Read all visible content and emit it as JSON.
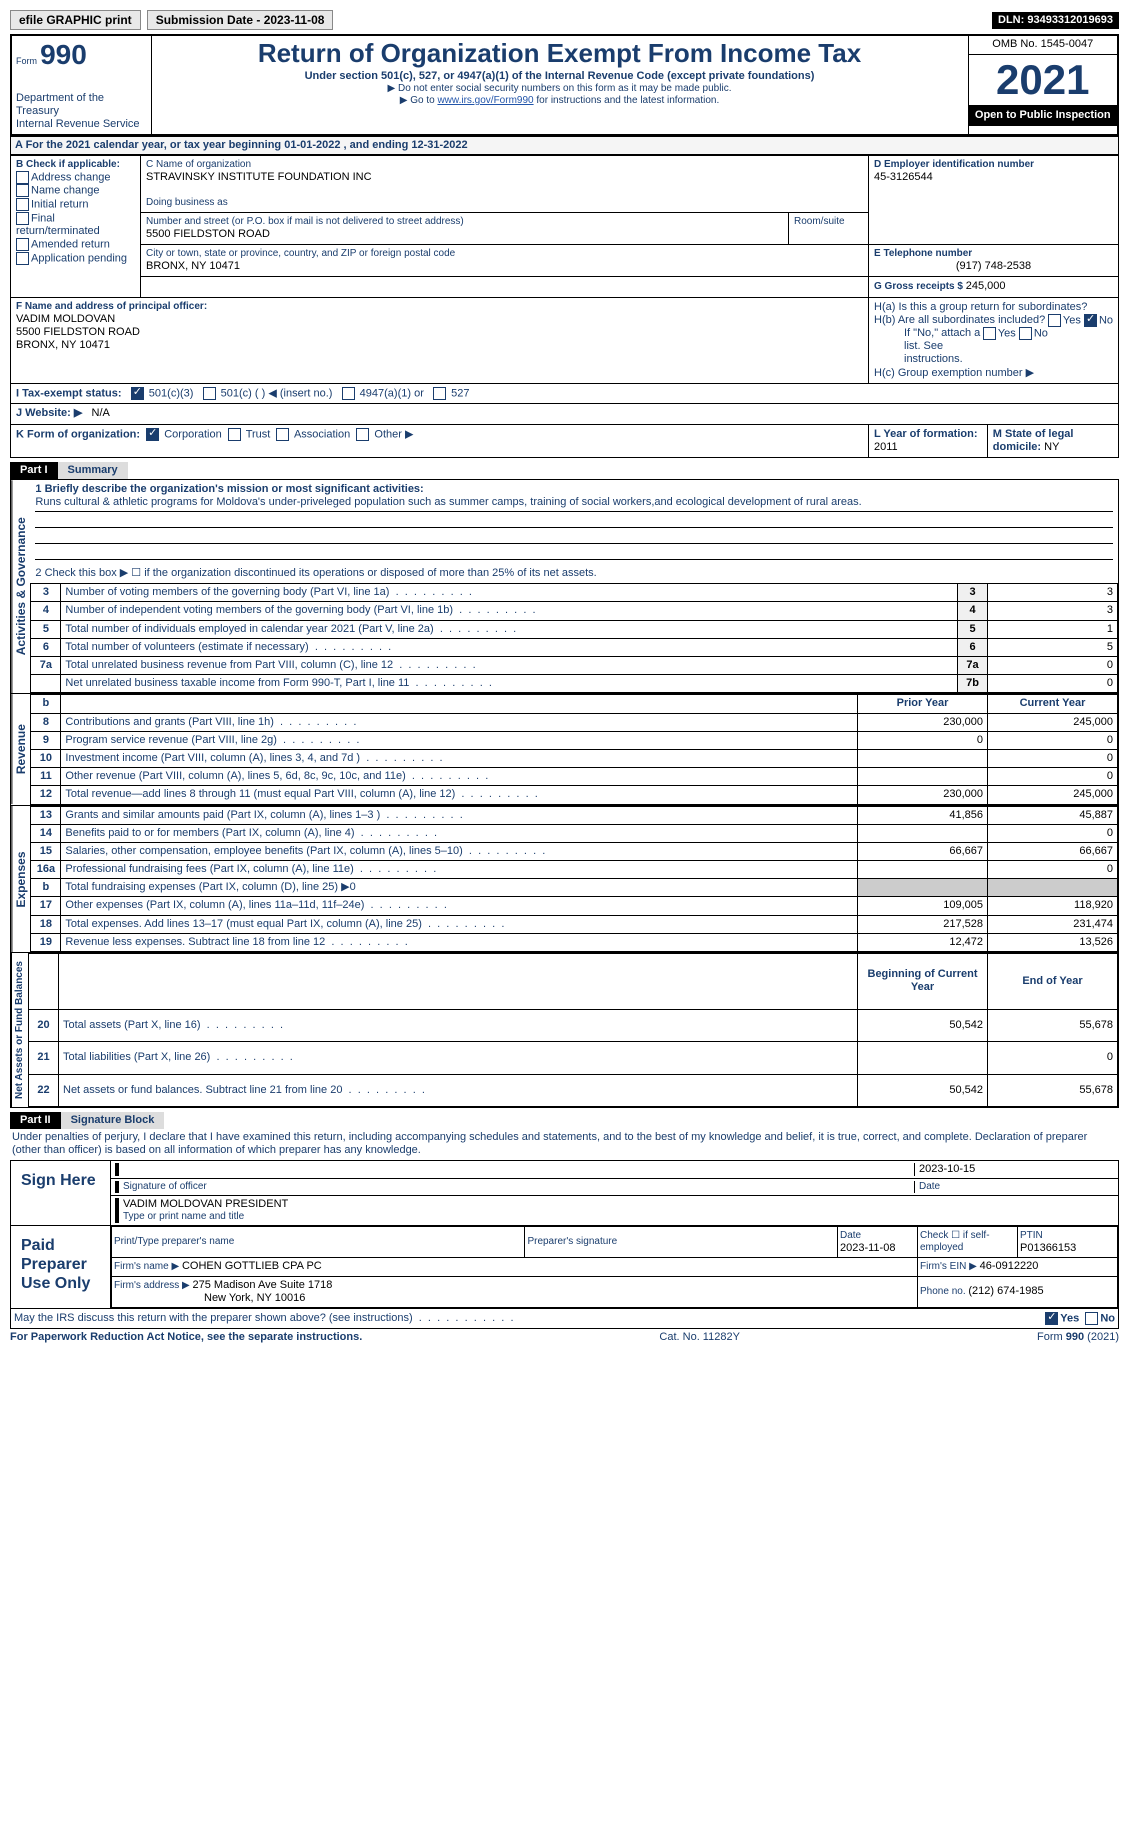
{
  "topbar": {
    "efile": "efile GRAPHIC print",
    "submission": "Submission Date - 2023-11-08",
    "dln": "DLN: 93493312019693"
  },
  "header": {
    "form_prefix": "Form",
    "form_num": "990",
    "title": "Return of Organization Exempt From Income Tax",
    "subtitle": "Under section 501(c), 527, or 4947(a)(1) of the Internal Revenue Code (except private foundations)",
    "note1": "▶ Do not enter social security numbers on this form as it may be made public.",
    "note2_prefix": "▶ Go to ",
    "note2_link": "www.irs.gov/Form990",
    "note2_suffix": " for instructions and the latest information.",
    "dept": "Department of the Treasury",
    "irs": "Internal Revenue Service",
    "omb": "OMB No. 1545-0047",
    "year": "2021",
    "inspect": "Open to Public Inspection"
  },
  "sectionA": {
    "text_prefix": "A For the 2021 calendar year, or tax year beginning ",
    "begin": "01-01-2022",
    "mid": " , and ending ",
    "end": "12-31-2022"
  },
  "sectionB": {
    "label": "B Check if applicable:",
    "opts": [
      "Address change",
      "Name change",
      "Initial return",
      "Final return/terminated",
      "Amended return",
      "Application pending"
    ]
  },
  "sectionC": {
    "name_label": "C Name of organization",
    "name": "STRAVINSKY INSTITUTE FOUNDATION INC",
    "dba_label": "Doing business as",
    "street_label": "Number and street (or P.O. box if mail is not delivered to street address)",
    "room_label": "Room/suite",
    "street": "5500 FIELDSTON ROAD",
    "city_label": "City or town, state or province, country, and ZIP or foreign postal code",
    "city": "BRONX, NY  10471"
  },
  "sectionD": {
    "label": "D Employer identification number",
    "value": "45-3126544"
  },
  "sectionE": {
    "label": "E Telephone number",
    "value": "(917) 748-2538"
  },
  "sectionG": {
    "label": "G Gross receipts $ ",
    "value": "245,000"
  },
  "sectionF": {
    "label": "F Name and address of principal officer:",
    "name": "VADIM MOLDOVAN",
    "street": "5500 FIELDSTON ROAD",
    "city": "BRONX, NY  10471"
  },
  "sectionH": {
    "ha": "H(a)  Is this a group return for subordinates?",
    "hb": "H(b)  Are all subordinates included?",
    "hb_note": "If \"No,\" attach a list. See instructions.",
    "hc": "H(c)  Group exemption number ▶"
  },
  "sectionI": {
    "label": "I  Tax-exempt status:",
    "opt1": "501(c)(3)",
    "opt2": "501(c) (  ) ◀ (insert no.)",
    "opt3": "4947(a)(1) or",
    "opt4": "527"
  },
  "sectionJ": {
    "label": "J  Website: ▶",
    "value": "N/A"
  },
  "sectionK": {
    "label": "K Form of organization:",
    "opts": [
      "Corporation",
      "Trust",
      "Association",
      "Other ▶"
    ]
  },
  "sectionL": {
    "label": "L Year of formation: ",
    "value": "2011"
  },
  "sectionM": {
    "label": "M State of legal domicile: ",
    "value": "NY"
  },
  "part1": {
    "header": "Part I",
    "title": "Summary",
    "line1_label": "1   Briefly describe the organization's mission or most significant activities:",
    "line1_text": "Runs cultural & athletic programs for Moldova's under-priveleged population such as summer camps, training of social workers,and ecological development of rural areas.",
    "line2": "2   Check this box ▶ ☐  if the organization discontinued its operations or disposed of more than 25% of its net assets.",
    "rows_gov": [
      {
        "n": "3",
        "t": "Number of voting members of the governing body (Part VI, line 1a)",
        "l": "3",
        "v": "3"
      },
      {
        "n": "4",
        "t": "Number of independent voting members of the governing body (Part VI, line 1b)",
        "l": "4",
        "v": "3"
      },
      {
        "n": "5",
        "t": "Total number of individuals employed in calendar year 2021 (Part V, line 2a)",
        "l": "5",
        "v": "1"
      },
      {
        "n": "6",
        "t": "Total number of volunteers (estimate if necessary)",
        "l": "6",
        "v": "5"
      },
      {
        "n": "7a",
        "t": "Total unrelated business revenue from Part VIII, column (C), line 12",
        "l": "7a",
        "v": "0"
      },
      {
        "n": "",
        "t": "Net unrelated business taxable income from Form 990-T, Part I, line 11",
        "l": "7b",
        "v": "0"
      }
    ],
    "col_prior": "Prior Year",
    "col_current": "Current Year",
    "rows_rev": [
      {
        "n": "8",
        "t": "Contributions and grants (Part VIII, line 1h)",
        "p": "230,000",
        "c": "245,000"
      },
      {
        "n": "9",
        "t": "Program service revenue (Part VIII, line 2g)",
        "p": "0",
        "c": "0"
      },
      {
        "n": "10",
        "t": "Investment income (Part VIII, column (A), lines 3, 4, and 7d )",
        "p": "",
        "c": "0"
      },
      {
        "n": "11",
        "t": "Other revenue (Part VIII, column (A), lines 5, 6d, 8c, 9c, 10c, and 11e)",
        "p": "",
        "c": "0"
      },
      {
        "n": "12",
        "t": "Total revenue—add lines 8 through 11 (must equal Part VIII, column (A), line 12)",
        "p": "230,000",
        "c": "245,000"
      }
    ],
    "rows_exp": [
      {
        "n": "13",
        "t": "Grants and similar amounts paid (Part IX, column (A), lines 1–3 )",
        "p": "41,856",
        "c": "45,887"
      },
      {
        "n": "14",
        "t": "Benefits paid to or for members (Part IX, column (A), line 4)",
        "p": "",
        "c": "0"
      },
      {
        "n": "15",
        "t": "Salaries, other compensation, employee benefits (Part IX, column (A), lines 5–10)",
        "p": "66,667",
        "c": "66,667"
      },
      {
        "n": "16a",
        "t": "Professional fundraising fees (Part IX, column (A), line 11e)",
        "p": "",
        "c": "0"
      },
      {
        "n": "b",
        "t": "Total fundraising expenses (Part IX, column (D), line 25) ▶0",
        "p": "GREY",
        "c": "GREY"
      },
      {
        "n": "17",
        "t": "Other expenses (Part IX, column (A), lines 11a–11d, 11f–24e)",
        "p": "109,005",
        "c": "118,920"
      },
      {
        "n": "18",
        "t": "Total expenses. Add lines 13–17 (must equal Part IX, column (A), line 25)",
        "p": "217,528",
        "c": "231,474"
      },
      {
        "n": "19",
        "t": "Revenue less expenses. Subtract line 18 from line 12",
        "p": "12,472",
        "c": "13,526"
      }
    ],
    "col_begin": "Beginning of Current Year",
    "col_end": "End of Year",
    "rows_net": [
      {
        "n": "20",
        "t": "Total assets (Part X, line 16)",
        "p": "50,542",
        "c": "55,678"
      },
      {
        "n": "21",
        "t": "Total liabilities (Part X, line 26)",
        "p": "",
        "c": "0"
      },
      {
        "n": "22",
        "t": "Net assets or fund balances. Subtract line 21 from line 20",
        "p": "50,542",
        "c": "55,678"
      }
    ],
    "vert_gov": "Activities & Governance",
    "vert_rev": "Revenue",
    "vert_exp": "Expenses",
    "vert_net": "Net Assets or Fund Balances"
  },
  "part2": {
    "header": "Part II",
    "title": "Signature Block",
    "perjury": "Under penalties of perjury, I declare that I have examined this return, including accompanying schedules and statements, and to the best of my knowledge and belief, it is true, correct, and complete. Declaration of preparer (other than officer) is based on all information of which preparer has any knowledge.",
    "sign_here": "Sign Here",
    "sig_officer": "Signature of officer",
    "sig_date": "2023-10-15",
    "sig_date_label": "Date",
    "officer_name": "VADIM MOLDOVAN  PRESIDENT",
    "officer_label": "Type or print name and title",
    "paid_prep": "Paid Preparer Use Only",
    "prep_name_label": "Print/Type preparer's name",
    "prep_sig_label": "Preparer's signature",
    "prep_date_label": "Date",
    "prep_date": "2023-11-08",
    "prep_check": "Check ☐ if self-employed",
    "ptin_label": "PTIN",
    "ptin": "P01366153",
    "firm_name_label": "Firm's name   ▶ ",
    "firm_name": "COHEN GOTTLIEB CPA PC",
    "firm_ein_label": "Firm's EIN ▶ ",
    "firm_ein": "46-0912220",
    "firm_addr_label": "Firm's address ▶ ",
    "firm_addr": "275 Madison Ave Suite 1718",
    "firm_city": "New York, NY  10016",
    "phone_label": "Phone no. ",
    "phone": "(212) 674-1985",
    "discuss": "May the IRS discuss this return with the preparer shown above? (see instructions)"
  },
  "footer": {
    "paperwork": "For Paperwork Reduction Act Notice, see the separate instructions.",
    "cat": "Cat. No. 11282Y",
    "form": "Form 990 (2021)"
  }
}
